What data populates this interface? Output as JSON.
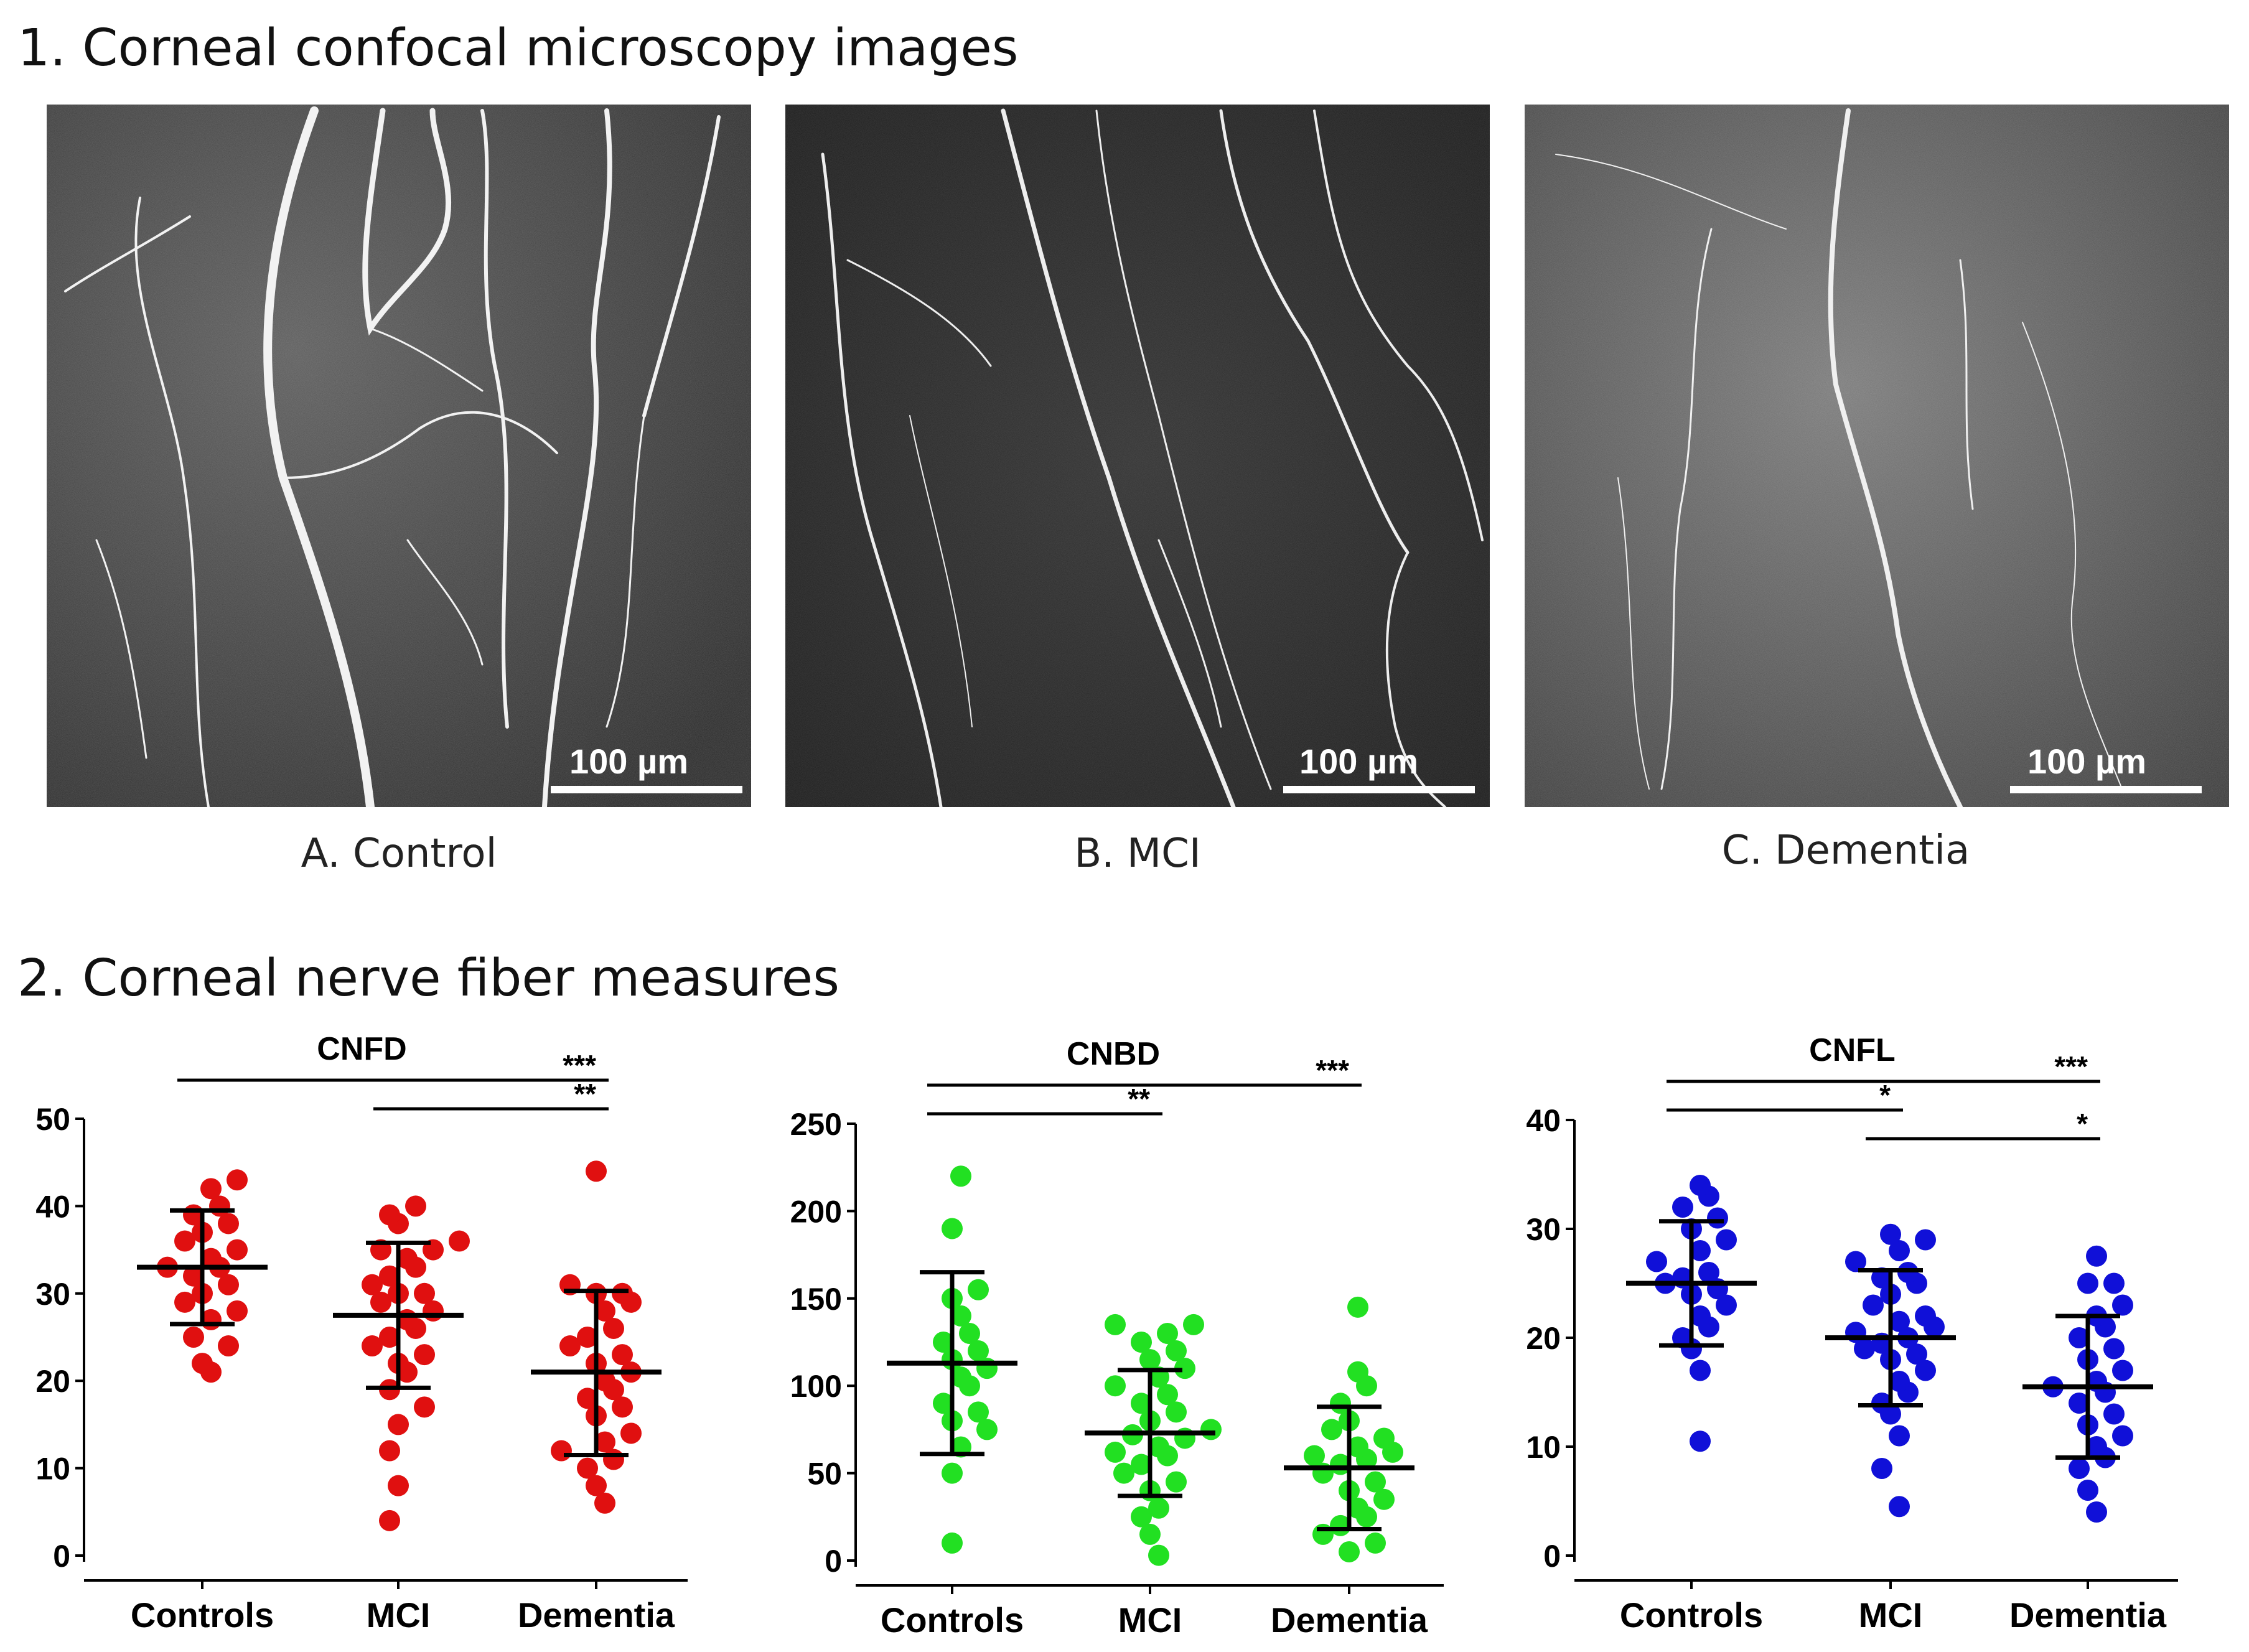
{
  "section1": {
    "title": "1. Corneal confocal microscopy images"
  },
  "section2": {
    "title": "2. Corneal nerve fiber measures"
  },
  "micrographs": [
    {
      "caption": "A. Control",
      "scale_bar": "100 µm"
    },
    {
      "caption": "B. MCI",
      "scale_bar": "100 µm"
    },
    {
      "caption": "C. Dementia",
      "scale_bar": "100 µm"
    }
  ],
  "colors": {
    "cnfd": "#e01010",
    "cnbd": "#22e022",
    "cnfl": "#1010d8",
    "bars": "#000000"
  },
  "chart_data": [
    {
      "type": "scatter",
      "title": "CNFD",
      "categories": [
        "Controls",
        "MCI",
        "Dementia"
      ],
      "ylim": [
        0,
        50
      ],
      "yticks": [
        0,
        10,
        20,
        30,
        40,
        50
      ],
      "color": "#e01010",
      "summary": [
        {
          "mean": 33,
          "sd_low": 26.5,
          "sd_high": 39.5
        },
        {
          "mean": 27.5,
          "sd_low": 19.2,
          "sd_high": 35.8
        },
        {
          "mean": 21,
          "sd_low": 11.5,
          "sd_high": 30.3
        }
      ],
      "points": [
        [
          21,
          22,
          24,
          25,
          27,
          28,
          29,
          30,
          31,
          32,
          33,
          33,
          34,
          35,
          36,
          37,
          38,
          39,
          40,
          42,
          43
        ],
        [
          4,
          8,
          12,
          15,
          17,
          19,
          21,
          22,
          23,
          24,
          25,
          26,
          27,
          28,
          29,
          30,
          30,
          31,
          32,
          33,
          34,
          35,
          35,
          36,
          38,
          39,
          40
        ],
        [
          6,
          8,
          10,
          11,
          12,
          13,
          14,
          16,
          17,
          18,
          19,
          20,
          21,
          22,
          23,
          24,
          25,
          26,
          28,
          29,
          30,
          30,
          31,
          44
        ]
      ],
      "significance": [
        {
          "label": "***",
          "from": 0,
          "to": 2
        },
        {
          "label": "**",
          "from": 1,
          "to": 2
        }
      ]
    },
    {
      "type": "scatter",
      "title": "CNBD",
      "categories": [
        "Controls",
        "MCI",
        "Dementia"
      ],
      "ylim": [
        0,
        250
      ],
      "yticks": [
        0,
        50,
        100,
        150,
        200,
        250
      ],
      "color": "#22e022",
      "summary": [
        {
          "mean": 113,
          "sd_low": 61,
          "sd_high": 165
        },
        {
          "mean": 73,
          "sd_low": 37,
          "sd_high": 109
        },
        {
          "mean": 53,
          "sd_low": 18,
          "sd_high": 88
        }
      ],
      "points": [
        [
          10,
          50,
          65,
          75,
          80,
          85,
          90,
          100,
          105,
          110,
          115,
          120,
          125,
          130,
          140,
          150,
          155,
          190,
          220
        ],
        [
          3,
          15,
          25,
          30,
          40,
          45,
          50,
          55,
          60,
          62,
          65,
          70,
          72,
          75,
          80,
          85,
          90,
          95,
          100,
          105,
          110,
          115,
          120,
          125,
          130,
          135,
          135
        ],
        [
          5,
          10,
          15,
          20,
          25,
          30,
          35,
          40,
          45,
          50,
          55,
          58,
          60,
          62,
          65,
          70,
          75,
          80,
          90,
          100,
          108,
          145
        ]
      ],
      "significance": [
        {
          "label": "***",
          "from": 0,
          "to": 2
        },
        {
          "label": "**",
          "from": 0,
          "to": 1
        }
      ]
    },
    {
      "type": "scatter",
      "title": "CNFL",
      "categories": [
        "Controls",
        "MCI",
        "Dementia"
      ],
      "ylim": [
        0,
        40
      ],
      "yticks": [
        0,
        10,
        20,
        30,
        40
      ],
      "color": "#1010d8",
      "summary": [
        {
          "mean": 25,
          "sd_low": 19.3,
          "sd_high": 30.7
        },
        {
          "mean": 20,
          "sd_low": 13.8,
          "sd_high": 26.2
        },
        {
          "mean": 15.5,
          "sd_low": 9,
          "sd_high": 22
        }
      ],
      "points": [
        [
          10.5,
          17,
          19,
          20,
          21,
          22,
          23,
          24,
          24.5,
          25,
          25.5,
          26,
          27,
          28,
          29,
          30,
          31,
          32,
          33,
          34
        ],
        [
          4.5,
          8,
          11,
          13,
          14,
          15,
          16,
          17,
          18,
          18.5,
          19,
          19.5,
          20,
          20.5,
          21,
          21.5,
          22,
          23,
          24,
          25,
          25.5,
          26,
          27,
          28,
          29,
          29.5
        ],
        [
          4,
          6,
          8,
          9,
          10,
          11,
          12,
          13,
          14,
          15,
          15.5,
          16,
          17,
          18,
          19,
          20,
          21,
          22,
          23,
          25,
          25,
          27.5
        ]
      ],
      "significance": [
        {
          "label": "***",
          "from": 0,
          "to": 2
        },
        {
          "label": "*",
          "from": 0,
          "to": 1
        },
        {
          "label": "*",
          "from": 1,
          "to": 2
        }
      ]
    }
  ]
}
